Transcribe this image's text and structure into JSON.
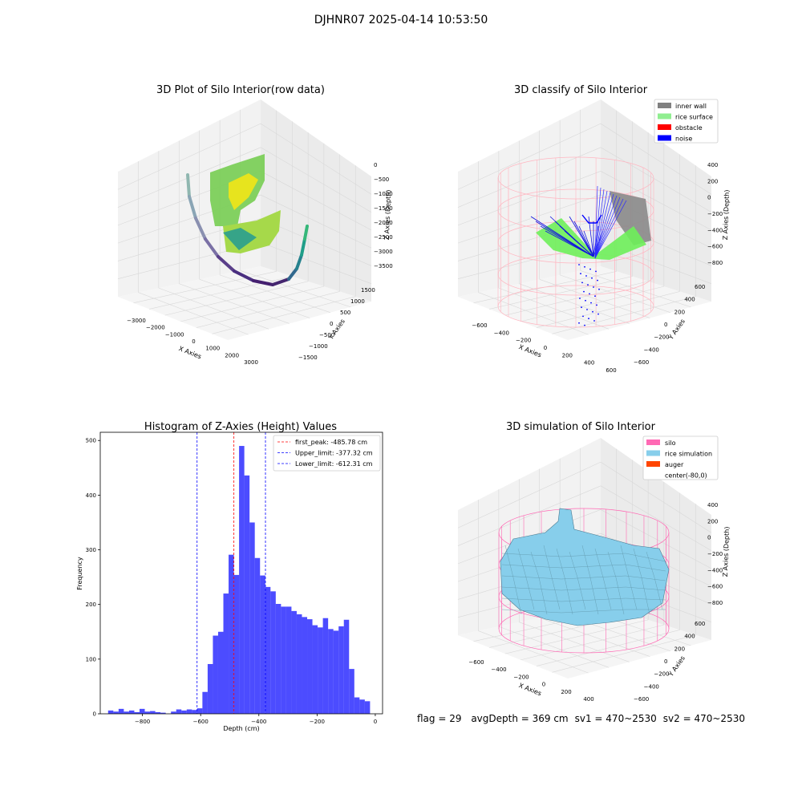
{
  "figure": {
    "suptitle": "DJHNR07 2025-04-14 10:53:50"
  },
  "footer": {
    "flag": "flag = 29",
    "avg_depth": "avgDepth = 369 cm",
    "sv1": "sv1 = 470~2530",
    "sv2": "sv2 = 470~2530"
  },
  "chart_data": [
    {
      "type": "scatter",
      "projection": "3d",
      "title": "3D Plot of Silo Interior(row data)",
      "xlabel": "X Axies",
      "ylabel": "Y Axies",
      "zlabel": "Z Axies (Depth)",
      "xticks": [
        "−3000",
        "−2000",
        "−1000",
        "0",
        "1000",
        "2000",
        "3000"
      ],
      "yticks": [
        "−1500",
        "−1000",
        "−500",
        "0",
        "500",
        "1000",
        "1500"
      ],
      "zticks": [
        "0",
        "−500",
        "−1000",
        "−1500",
        "−2000",
        "−2500",
        "−3000",
        "−3500"
      ],
      "colormap": "viridis",
      "grid": true
    },
    {
      "type": "scatter",
      "projection": "3d",
      "title": "3D classify of Silo Interior",
      "xlabel": "X Axies",
      "ylabel": "Y Axies",
      "zlabel": "Z Axies (Depth)",
      "xticks": [
        "−600",
        "−400",
        "−200",
        "0",
        "200",
        "400",
        "600"
      ],
      "yticks": [
        "−600",
        "−400",
        "−200",
        "0",
        "200",
        "400",
        "600"
      ],
      "zticks": [
        "400",
        "200",
        "0",
        "−200",
        "−400",
        "−600",
        "−800"
      ],
      "legend": [
        {
          "label": "inner wall",
          "color": "#808080"
        },
        {
          "label": "rice surface",
          "color": "#90ee90"
        },
        {
          "label": "obstacle",
          "color": "#ff0000"
        },
        {
          "label": "noise",
          "color": "#0000ff"
        }
      ],
      "legend_position": "top-right",
      "wireframe_color": "#ffb6c1",
      "grid": true
    },
    {
      "type": "bar",
      "subtype": "histogram",
      "title": "Histogram of Z-Axies (Height) Values",
      "xlabel": "Depth (cm)",
      "ylabel": "Frequency",
      "xlim": [
        -945,
        25
      ],
      "ylim": [
        0,
        515
      ],
      "xticks": [
        -800,
        -600,
        -400,
        -200,
        0
      ],
      "xtick_labels": [
        "−800",
        "−600",
        "−400",
        "−200",
        "0"
      ],
      "yticks": [
        0,
        100,
        200,
        300,
        400,
        500
      ],
      "bin_start": -918,
      "bin_width": 18,
      "values": [
        6,
        4,
        9,
        4,
        6,
        3,
        9,
        4,
        5,
        3,
        2,
        0,
        4,
        8,
        6,
        8,
        7,
        10,
        40,
        91,
        143,
        150,
        220,
        291,
        254,
        490,
        436,
        350,
        285,
        253,
        232,
        224,
        201,
        196,
        196,
        188,
        182,
        177,
        173,
        162,
        158,
        175,
        155,
        152,
        160,
        172,
        82,
        30,
        26,
        23
      ],
      "bar_color": "#0000ff",
      "bar_alpha": 0.7,
      "vlines": [
        {
          "label": "first_peak: -485.78 cm",
          "x": -485.78,
          "color": "#ff0000"
        },
        {
          "label": "Upper_limit: -377.32 cm",
          "x": -377.32,
          "color": "#0000ff"
        },
        {
          "label": "Lower_limit: -612.31 cm",
          "x": -612.31,
          "color": "#0000ff"
        }
      ],
      "legend_position": "top-right",
      "grid": false
    },
    {
      "type": "surface",
      "projection": "3d",
      "title": "3D simulation of Silo Interior",
      "xlabel": "X Axies",
      "ylabel": "Y Axies",
      "zlabel": "Z Axies (Depth)",
      "xticks": [
        "−600",
        "−400",
        "−200",
        "0",
        "200",
        "400"
      ],
      "yticks": [
        "−600",
        "−400",
        "−200",
        "0",
        "200",
        "400",
        "600"
      ],
      "zticks": [
        "400",
        "200",
        "0",
        "−200",
        "−400",
        "−600",
        "−800"
      ],
      "legend": [
        {
          "label": "silo",
          "color": "#ff69b4"
        },
        {
          "label": "rice simulation",
          "color": "#87ceeb"
        },
        {
          "label": "auger",
          "color": "#ff4500"
        },
        {
          "label": "center(-80,0)",
          "color": "none"
        }
      ],
      "legend_position": "top-right",
      "grid": true
    }
  ]
}
